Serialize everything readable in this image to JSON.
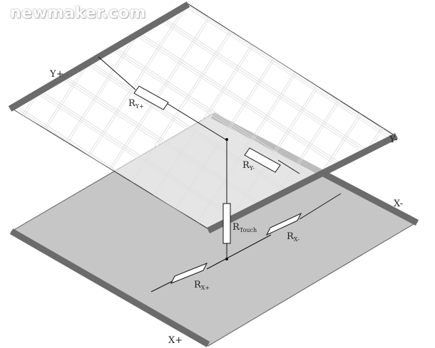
{
  "watermark": "newmaker.com",
  "labels": {
    "y_plus": "Y+",
    "y_minus": "Y-",
    "x_plus": "X+",
    "x_minus": "X-"
  },
  "resistors": {
    "ry_plus": {
      "base": "R",
      "sub": "Y+"
    },
    "ry_minus": {
      "base": "R",
      "sub": "Y-"
    },
    "rtouch": {
      "base": "R",
      "sub": "Touch"
    },
    "rx_plus": {
      "base": "R",
      "sub": "X+"
    },
    "rx_minus": {
      "base": "R",
      "sub": "X-"
    }
  },
  "colors": {
    "electrode": "#6b6b6b",
    "bottom_layer": "#c5c5c5",
    "wire": "#111111",
    "grid_pattern": "#d8d8d8"
  }
}
